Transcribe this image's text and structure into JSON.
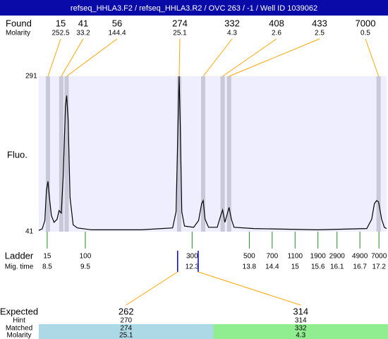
{
  "header": {
    "title": "refseq_HHLA3.F2 / refseq_HHLA3.R2 / OVC 263 / -1 / Well ID 1039062"
  },
  "chart_data": {
    "type": "electropherogram",
    "ylabel": "Fluo.",
    "xlim": [
      8.28,
      17.4
    ],
    "ylim": [
      41,
      291
    ],
    "yticks": [
      291,
      41
    ],
    "trace": {
      "color": "#000000",
      "x": [
        8.28,
        8.37,
        8.44,
        8.48,
        8.52,
        8.55,
        8.61,
        8.68,
        8.76,
        8.81,
        8.87,
        8.92,
        8.98,
        9.01,
        9.05,
        9.1,
        9.18,
        9.29,
        9.66,
        10.96,
        11.79,
        11.88,
        11.92,
        11.96,
        11.99,
        12.03,
        12.1,
        12.34,
        12.47,
        12.55,
        12.59,
        12.64,
        12.73,
        12.96,
        13.05,
        13.1,
        13.16,
        13.21,
        13.27,
        13.33,
        13.4,
        13.92,
        15.58,
        16.88,
        17.01,
        17.08,
        17.14,
        17.19,
        17.27,
        17.34,
        17.4
      ],
      "y": [
        43,
        45.5,
        59,
        107,
        122,
        101,
        67,
        56,
        61,
        75,
        71,
        130,
        243,
        260,
        221,
        96,
        52,
        47,
        44,
        44,
        47,
        73,
        186,
        291,
        209,
        73,
        50,
        48,
        59,
        86,
        91,
        61,
        48,
        48,
        67,
        76,
        56,
        67,
        80,
        61,
        48,
        46,
        44,
        46,
        61,
        86,
        91,
        89,
        61,
        48,
        46
      ]
    },
    "found": {
      "label": "Found",
      "molarity_label": "Molarity",
      "sizes": [
        15,
        41,
        56,
        274,
        332,
        408,
        433,
        7000
      ],
      "molarity": [
        252.5,
        33.2,
        144.4,
        25.1,
        4.3,
        2.6,
        2.5,
        0.5
      ],
      "time": [
        8.52,
        8.87,
        9.01,
        11.96,
        12.59,
        13.1,
        13.27,
        17.19
      ],
      "line_color": "#ffa500",
      "band_color": "#c8c8d8"
    },
    "ladder": {
      "label": "Ladder",
      "time_label": "Mig. time",
      "color": "#228b22",
      "sizes": [
        15,
        100,
        300,
        500,
        700,
        1100,
        1900,
        2900,
        4900,
        7000
      ],
      "times": [
        8.5,
        9.5,
        12.3,
        13.8,
        14.4,
        15,
        15.6,
        16.1,
        16.7,
        17.2
      ]
    }
  },
  "expected": {
    "label": "Expected",
    "hint_label": "Hint",
    "matched_label": "Matched",
    "molarity_label": "Molarity",
    "marker_color": "#0000cc",
    "columns": [
      {
        "expected": 262,
        "hint": 270,
        "matched": 274,
        "molarity": 25.1,
        "time": 11.92,
        "color": "#add8e6"
      },
      {
        "expected": 314,
        "hint": 314,
        "matched": 332,
        "molarity": 4.3,
        "time": 12.46,
        "color": "#90ee90"
      }
    ]
  }
}
